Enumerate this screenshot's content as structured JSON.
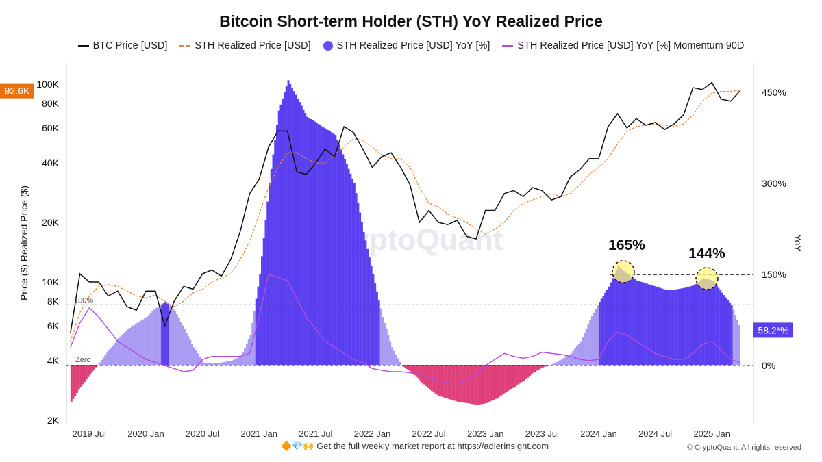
{
  "chart_data": {
    "type": "line",
    "title": "Bitcoin Short-term Holder (STH) YoY Realized Price",
    "legend": [
      "BTC Price [USD]",
      "STH Realized Price [USD]",
      "STH Realized Price [USD] YoY [%]",
      "STH Realized Price [USD] YoY [%] Momentum 90D"
    ],
    "legend_placement": "top",
    "ylabel_left": "Price ($) Realized Price ($)",
    "ylabel_right": "YoY",
    "y_left_scale": "log",
    "y_left_ticks": [
      "2K",
      "4K",
      "6K",
      "8K",
      "10K",
      "20K",
      "40K",
      "60K",
      "80K",
      "100K"
    ],
    "y_left_tick_values": [
      2000,
      4000,
      6000,
      8000,
      10000,
      20000,
      40000,
      60000,
      80000,
      100000
    ],
    "y_right_ticks": [
      "0%",
      "150%",
      "300%",
      "450%"
    ],
    "y_right_tick_values": [
      0,
      150,
      300,
      450
    ],
    "x_ticks": [
      "2019 Jul",
      "2020 Jan",
      "2020 Jul",
      "2021 Jan",
      "2021 Jul",
      "2022 Jan",
      "2022 Jul",
      "2023 Jan",
      "2023 Jul",
      "2024 Jan",
      "2024 Jul",
      "2025 Jan"
    ],
    "x_tick_dates": [
      "2019-07",
      "2020-01",
      "2020-07",
      "2021-01",
      "2021-07",
      "2022-01",
      "2022-07",
      "2023-01",
      "2023-07",
      "2024-01",
      "2024-07",
      "2025-01"
    ],
    "dates": [
      "2019-05",
      "2019-06",
      "2019-07",
      "2019-08",
      "2019-09",
      "2019-10",
      "2019-11",
      "2019-12",
      "2020-01",
      "2020-02",
      "2020-03",
      "2020-04",
      "2020-05",
      "2020-06",
      "2020-07",
      "2020-08",
      "2020-09",
      "2020-10",
      "2020-11",
      "2020-12",
      "2021-01",
      "2021-02",
      "2021-03",
      "2021-04",
      "2021-05",
      "2021-06",
      "2021-07",
      "2021-08",
      "2021-09",
      "2021-10",
      "2021-11",
      "2021-12",
      "2022-01",
      "2022-02",
      "2022-03",
      "2022-04",
      "2022-05",
      "2022-06",
      "2022-07",
      "2022-08",
      "2022-09",
      "2022-10",
      "2022-11",
      "2022-12",
      "2023-01",
      "2023-02",
      "2023-03",
      "2023-04",
      "2023-05",
      "2023-06",
      "2023-07",
      "2023-08",
      "2023-09",
      "2023-10",
      "2023-11",
      "2023-12",
      "2024-01",
      "2024-02",
      "2024-03",
      "2024-04",
      "2024-05",
      "2024-06",
      "2024-07",
      "2024-08",
      "2024-09",
      "2024-10",
      "2024-11",
      "2024-12",
      "2025-01",
      "2025-02",
      "2025-03",
      "2025-04"
    ],
    "series": [
      {
        "name": "BTC Price [USD]",
        "color": "#111111",
        "axis": "left",
        "values": [
          5500,
          11000,
          10000,
          10000,
          8500,
          9000,
          7500,
          7200,
          9000,
          9000,
          6000,
          8000,
          9500,
          9200,
          11000,
          11500,
          10700,
          13000,
          18000,
          28000,
          33000,
          48000,
          58000,
          58000,
          36000,
          35000,
          40000,
          47000,
          43000,
          61000,
          57000,
          47000,
          38000,
          43000,
          45000,
          38000,
          31000,
          20000,
          23000,
          20000,
          19500,
          20500,
          17000,
          16500,
          23000,
          23000,
          28000,
          29000,
          27000,
          30000,
          29000,
          26000,
          27000,
          34000,
          37000,
          42000,
          42000,
          61000,
          71000,
          60000,
          67000,
          62000,
          64000,
          59000,
          63000,
          70000,
          96000,
          94000,
          102000,
          84000,
          82000,
          92600
        ]
      },
      {
        "name": "STH Realized Price [USD]",
        "color": "#e8833a",
        "axis": "left",
        "values": [
          5000,
          7000,
          8500,
          9500,
          9700,
          9500,
          9000,
          8500,
          8300,
          8600,
          8000,
          7500,
          8000,
          8800,
          9200,
          10000,
          10500,
          11000,
          13000,
          16000,
          22000,
          30000,
          38000,
          45000,
          45000,
          42000,
          40000,
          40000,
          44000,
          48000,
          53000,
          52000,
          48000,
          44000,
          42000,
          42000,
          38000,
          30000,
          25000,
          24000,
          22000,
          21000,
          20000,
          18500,
          17500,
          18500,
          20000,
          23000,
          25000,
          26000,
          27000,
          28000,
          27000,
          28000,
          31000,
          35000,
          38000,
          42000,
          50000,
          58000,
          61000,
          62000,
          63000,
          62000,
          61000,
          63000,
          70000,
          82000,
          90000,
          92000,
          92000,
          93000
        ]
      },
      {
        "name": "STH Realized Price [USD] YoY [%]",
        "color": "#5533ee",
        "axis": "right",
        "values": [
          -60,
          -35,
          -15,
          5,
          25,
          45,
          60,
          70,
          80,
          95,
          105,
          90,
          60,
          30,
          5,
          3,
          5,
          8,
          15,
          50,
          150,
          300,
          420,
          470,
          440,
          410,
          400,
          390,
          380,
          340,
          300,
          220,
          150,
          80,
          30,
          0,
          -10,
          -25,
          -40,
          -50,
          -55,
          -60,
          -62,
          -65,
          -62,
          -55,
          -45,
          -35,
          -25,
          -12,
          -3,
          2,
          10,
          20,
          40,
          75,
          105,
          130,
          165,
          150,
          140,
          135,
          130,
          125,
          125,
          128,
          132,
          144,
          140,
          120,
          100,
          58.2
        ]
      },
      {
        "name": "STH Realized Price [USD] YoY [%] Momentum 90D",
        "color": "#b44ae0",
        "axis": "right",
        "values": [
          30,
          70,
          95,
          80,
          60,
          40,
          30,
          20,
          10,
          5,
          0,
          -5,
          -10,
          -8,
          10,
          15,
          15,
          15,
          15,
          20,
          80,
          150,
          145,
          140,
          110,
          80,
          60,
          40,
          30,
          20,
          10,
          5,
          -5,
          -8,
          -10,
          -10,
          -12,
          -15,
          -20,
          -25,
          -28,
          -30,
          -25,
          -15,
          0,
          10,
          20,
          15,
          12,
          15,
          22,
          20,
          18,
          15,
          10,
          8,
          10,
          40,
          55,
          50,
          40,
          30,
          20,
          15,
          10,
          10,
          20,
          35,
          40,
          25,
          10,
          5
        ]
      }
    ],
    "reference_lines": [
      {
        "label": "Zero",
        "value": 0
      },
      {
        "label": "100%",
        "value": 100
      },
      {
        "value": 150
      }
    ],
    "annotations": [
      {
        "text": "165%",
        "date": "2024-03",
        "value": 165
      },
      {
        "text": "144%",
        "date": "2024-12",
        "value": 144
      }
    ],
    "current_value_tags": {
      "btc_price": "92.6K",
      "yoy": "58.2*%"
    },
    "grid": false
  },
  "watermark": "CryptoQuant",
  "footer": {
    "emoji": "🔶💎🙌",
    "text": "Get the full weekly market report at",
    "link": "https://adlerinsight.com",
    "copyright": "© CryptoQuant. All rights reserved"
  }
}
